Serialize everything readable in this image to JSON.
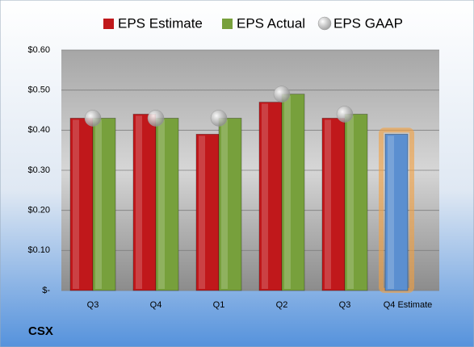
{
  "chart_data": {
    "type": "bar",
    "caption": "CSX",
    "categories": [
      "Q3",
      "Q4",
      "Q1",
      "Q2",
      "Q3",
      "Q4 Estimate"
    ],
    "series": [
      {
        "name": "EPS Estimate",
        "color": "#c0181b",
        "point_colors": [
          "#c0181b",
          "#c0181b",
          "#c0181b",
          "#c0181b",
          "#c0181b",
          "#5b8fd0"
        ],
        "values": [
          0.43,
          0.44,
          0.39,
          0.47,
          0.43,
          0.39
        ]
      },
      {
        "name": "EPS Actual",
        "color": "#77a03c",
        "values": [
          0.43,
          0.43,
          0.43,
          0.49,
          0.44,
          null
        ]
      },
      {
        "name": "EPS GAAP",
        "color": "#b8b8b8",
        "marker": "circle",
        "values": [
          0.43,
          0.43,
          0.43,
          0.49,
          0.44,
          null
        ]
      }
    ],
    "ylim": [
      0,
      0.6
    ],
    "yticks": [
      {
        "value": 0,
        "label": "$-"
      },
      {
        "value": 0.1,
        "label": "$0.10"
      },
      {
        "value": 0.2,
        "label": "$0.20"
      },
      {
        "value": 0.3,
        "label": "$0.30"
      },
      {
        "value": 0.4,
        "label": "$0.40"
      },
      {
        "value": 0.5,
        "label": "$0.50"
      },
      {
        "value": 0.6,
        "label": "$0.60"
      }
    ],
    "grid": true
  }
}
